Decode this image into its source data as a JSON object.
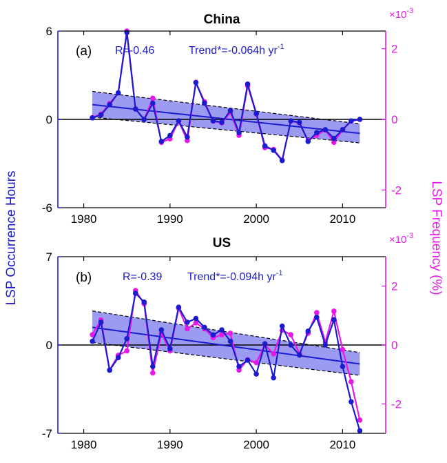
{
  "shared": {
    "ylabel_left": "LSP Occurrence Hours",
    "ylabel_right": "LSP Frequency (%)",
    "right_multiplier": "×10",
    "right_multiplier_exp": "-3",
    "left_color": "#1c1ccf",
    "right_color": "#e818e8",
    "band_color": "#8a8af0",
    "axis_color": "#000000"
  },
  "chart_data": [
    {
      "type": "line",
      "title": "China",
      "panel_label": "(a)",
      "stat_r": "R=-0.46",
      "stat_trend": "Trend*=-0.064h yr",
      "stat_unit_exp": "-1",
      "xlim": [
        1977,
        2015
      ],
      "xticks": [
        1980,
        1990,
        2000,
        2010
      ],
      "ylim_left": [
        -6,
        6
      ],
      "yticks_left": [
        -6,
        0,
        6
      ],
      "ylim_right": [
        -2.5,
        2.5
      ],
      "yticks_right": [
        -2,
        0,
        2
      ],
      "x": [
        1981,
        1982,
        1983,
        1984,
        1985,
        1986,
        1987,
        1988,
        1989,
        1990,
        1991,
        1992,
        1993,
        1994,
        1995,
        1996,
        1997,
        1998,
        1999,
        2000,
        2001,
        2002,
        2003,
        2004,
        2005,
        2006,
        2007,
        2008,
        2009,
        2010,
        2011,
        2012
      ],
      "series": [
        {
          "name": "LSP Occurrence Hours",
          "axis": "left",
          "values": [
            0.1,
            0.3,
            1.0,
            1.8,
            5.9,
            0.7,
            0.0,
            1.1,
            -1.5,
            -1.1,
            -0.1,
            -1.2,
            2.5,
            1.1,
            -0.1,
            -0.2,
            0.6,
            -0.9,
            2.4,
            0.4,
            -1.8,
            -2.1,
            -2.8,
            -0.1,
            -0.2,
            -1.5,
            -0.9,
            -0.7,
            -1.3,
            -0.7,
            -0.1,
            0.0
          ]
        },
        {
          "name": "LSP Frequency",
          "axis": "right",
          "values": [
            0.05,
            0.15,
            0.45,
            0.75,
            2.5,
            0.3,
            0.0,
            0.6,
            -0.65,
            -0.55,
            -0.05,
            -0.6,
            1.05,
            0.5,
            -0.05,
            -0.1,
            0.2,
            -0.45,
            0.95,
            0.15,
            -0.8,
            -0.85,
            -1.15,
            -0.05,
            -0.1,
            -0.6,
            -0.45,
            -0.3,
            -0.65,
            -0.3,
            -0.05,
            0.0
          ]
        }
      ],
      "trend": {
        "x": [
          1981,
          2012
        ],
        "y": [
          1.0,
          -0.95
        ],
        "upper": [
          1.9,
          -0.3
        ],
        "lower": [
          0.15,
          -1.6
        ]
      }
    },
    {
      "type": "line",
      "title": "US",
      "panel_label": "(b)",
      "stat_r": "R=-0.39",
      "stat_trend": "Trend*=-0.094h yr",
      "stat_unit_exp": "-1",
      "xlim": [
        1977,
        2015
      ],
      "xticks": [
        1980,
        1990,
        2000,
        2010
      ],
      "ylim_left": [
        -7,
        7
      ],
      "yticks_left": [
        -7,
        0,
        7
      ],
      "ylim_right": [
        -3,
        3
      ],
      "yticks_right": [
        -2,
        0,
        2
      ],
      "x": [
        1981,
        1982,
        1983,
        1984,
        1985,
        1986,
        1987,
        1988,
        1989,
        1990,
        1991,
        1992,
        1993,
        1994,
        1995,
        1996,
        1997,
        1998,
        1999,
        2000,
        2001,
        2002,
        2003,
        2004,
        2005,
        2006,
        2007,
        2008,
        2009,
        2010,
        2011,
        2012
      ],
      "series": [
        {
          "name": "LSP Occurrence Hours",
          "axis": "left",
          "values": [
            0.3,
            1.8,
            -2.0,
            -1.0,
            0.5,
            4.1,
            3.4,
            -1.7,
            1.2,
            -0.3,
            3.0,
            1.8,
            2.1,
            1.4,
            0.8,
            1.2,
            0.3,
            -1.7,
            -1.2,
            -2.3,
            0.1,
            -2.6,
            1.5,
            0.0,
            -0.8,
            1.1,
            2.2,
            0.0,
            2.0,
            -1.7,
            -4.5,
            -6.8
          ]
        },
        {
          "name": "LSP Frequency",
          "axis": "right",
          "values": [
            0.35,
            0.85,
            -0.85,
            -0.35,
            -0.2,
            1.85,
            1.4,
            -0.95,
            0.4,
            -0.2,
            1.25,
            0.55,
            0.75,
            0.55,
            0.25,
            0.35,
            0.4,
            -0.85,
            -0.5,
            -0.6,
            0.0,
            -0.3,
            0.5,
            0.35,
            -0.3,
            0.4,
            1.1,
            0.1,
            1.15,
            -0.15,
            -1.25,
            -2.55
          ]
        }
      ],
      "trend": {
        "x": [
          1981,
          2012
        ],
        "y": [
          1.4,
          -1.5
        ],
        "upper": [
          2.7,
          -0.6
        ],
        "lower": [
          0.2,
          -2.4
        ]
      }
    }
  ]
}
